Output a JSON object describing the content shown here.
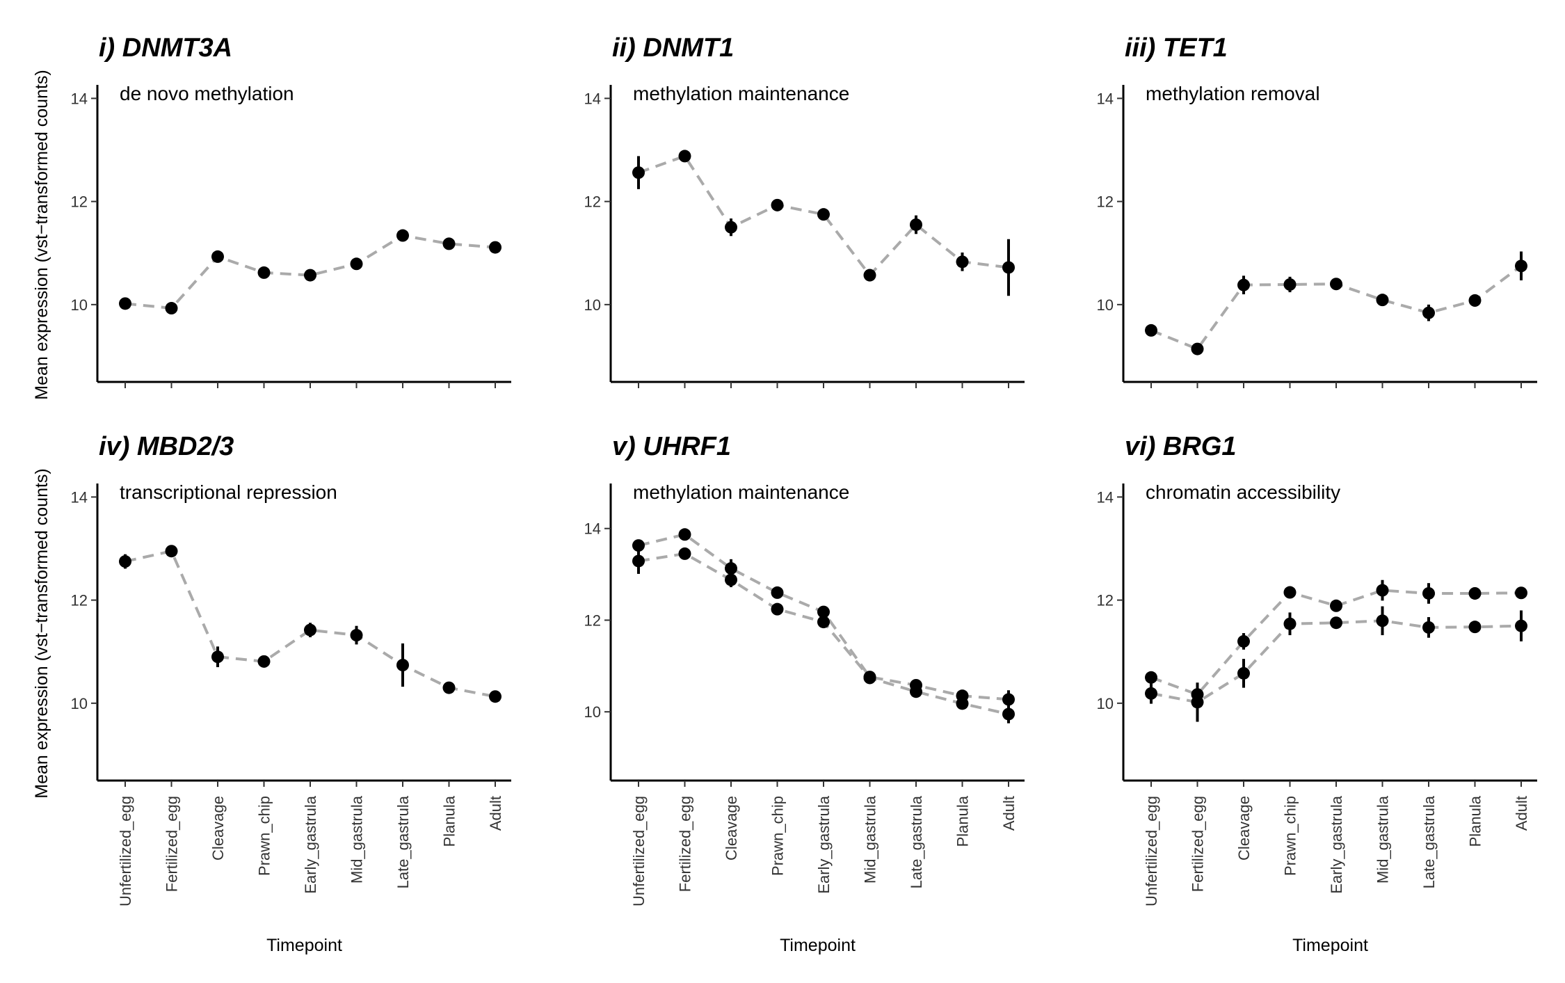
{
  "chart_data": [
    {
      "type": "scatter",
      "title": "i) DNMT3A",
      "subtitle": "de novo methylation",
      "xlabel": "",
      "ylabel": "Mean expression (vst−transformed counts)",
      "ylim": [
        8.5,
        14.1
      ],
      "yticks": [
        10,
        12,
        14
      ],
      "categories": [
        "Unfertilized_egg",
        "Fertilized_egg",
        "Cleavage",
        "Prawn_chip",
        "Early_gastrula",
        "Mid_gastrula",
        "Late_gastrula",
        "Planula",
        "Adult"
      ],
      "series": [
        {
          "values": [
            10.02,
            9.93,
            10.93,
            10.62,
            10.57,
            10.79,
            11.34,
            11.18,
            11.11
          ],
          "err": [
            0.05,
            0.05,
            0.06,
            0.05,
            0.05,
            0.06,
            0.06,
            0.06,
            0.1
          ]
        }
      ]
    },
    {
      "type": "scatter",
      "title": "ii) DNMT1",
      "subtitle": "methylation maintenance",
      "xlabel": "",
      "ylabel": "",
      "ylim": [
        8.5,
        14.1
      ],
      "yticks": [
        10,
        12,
        14
      ],
      "categories": [
        "Unfertilized_egg",
        "Fertilized_egg",
        "Cleavage",
        "Prawn_chip",
        "Early_gastrula",
        "Mid_gastrula",
        "Late_gastrula",
        "Planula",
        "Adult"
      ],
      "series": [
        {
          "values": [
            12.56,
            12.88,
            11.5,
            11.93,
            11.75,
            10.57,
            11.55,
            10.83,
            10.72
          ],
          "err": [
            0.32,
            0.06,
            0.17,
            0.06,
            0.06,
            0.12,
            0.18,
            0.18,
            0.55
          ]
        }
      ]
    },
    {
      "type": "scatter",
      "title": "iii) TET1",
      "subtitle": "methylation removal",
      "xlabel": "",
      "ylabel": "",
      "ylim": [
        8.5,
        14.1
      ],
      "yticks": [
        10,
        12,
        14
      ],
      "categories": [
        "Unfertilized_egg",
        "Fertilized_egg",
        "Cleavage",
        "Prawn_chip",
        "Early_gastrula",
        "Mid_gastrula",
        "Late_gastrula",
        "Planula",
        "Adult"
      ],
      "series": [
        {
          "values": [
            9.5,
            9.14,
            10.38,
            10.39,
            10.4,
            10.09,
            9.84,
            10.08,
            10.75
          ],
          "err": [
            0.05,
            0.0,
            0.18,
            0.15,
            0.06,
            0.06,
            0.16,
            0.12,
            0.28
          ]
        }
      ]
    },
    {
      "type": "scatter",
      "title": "iv) MBD2/3",
      "subtitle": "transcriptional repression",
      "xlabel": "Timepoint",
      "ylabel": "Mean expression (vst−transformed counts)",
      "ylim": [
        8.5,
        14.1
      ],
      "yticks": [
        10,
        12,
        14
      ],
      "categories": [
        "Unfertilized_egg",
        "Fertilized_egg",
        "Cleavage",
        "Prawn_chip",
        "Early_gastrula",
        "Mid_gastrula",
        "Late_gastrula",
        "Planula",
        "Adult"
      ],
      "series": [
        {
          "values": [
            12.75,
            12.95,
            10.9,
            10.81,
            11.42,
            11.32,
            10.74,
            10.3,
            10.13
          ],
          "err": [
            0.14,
            0.05,
            0.2,
            0.1,
            0.14,
            0.18,
            0.42,
            0.06,
            0.06
          ]
        }
      ]
    },
    {
      "type": "scatter",
      "title": "v) UHRF1",
      "subtitle": "methylation maintenance",
      "xlabel": "Timepoint",
      "ylabel": "",
      "ylim": [
        8.5,
        14.8
      ],
      "yticks": [
        10,
        12,
        14
      ],
      "categories": [
        "Unfertilized_egg",
        "Fertilized_egg",
        "Cleavage",
        "Prawn_chip",
        "Early_gastrula",
        "Mid_gastrula",
        "Late_gastrula",
        "Planula",
        "Adult"
      ],
      "series": [
        {
          "values": [
            13.63,
            13.87,
            13.13,
            12.6,
            12.18,
            10.76,
            10.58,
            10.35,
            10.27
          ],
          "err": [
            0.08,
            0.08,
            0.2,
            0.08,
            0.08,
            0.06,
            0.06,
            0.06,
            0.2
          ]
        },
        {
          "values": [
            13.29,
            13.45,
            12.88,
            12.24,
            11.96,
            10.74,
            10.44,
            10.18,
            9.95
          ],
          "err": [
            0.28,
            0.06,
            0.16,
            0.1,
            0.08,
            0.06,
            0.08,
            0.06,
            0.2
          ]
        }
      ]
    },
    {
      "type": "scatter",
      "title": "vi) BRG1",
      "subtitle": "chromatin accessibility",
      "xlabel": "Timepoint",
      "ylabel": "",
      "ylim": [
        8.5,
        14.1
      ],
      "yticks": [
        10,
        12,
        14
      ],
      "categories": [
        "Unfertilized_egg",
        "Fertilized_egg",
        "Cleavage",
        "Prawn_chip",
        "Early_gastrula",
        "Mid_gastrula",
        "Late_gastrula",
        "Planula",
        "Adult"
      ],
      "series": [
        {
          "values": [
            10.5,
            10.17,
            11.2,
            12.15,
            11.89,
            12.19,
            12.13,
            12.13,
            12.14
          ],
          "err": [
            0.06,
            0.2,
            0.16,
            0.06,
            0.06,
            0.2,
            0.2,
            0.12,
            0.06
          ]
        },
        {
          "values": [
            10.19,
            10.02,
            10.58,
            11.54,
            11.56,
            11.6,
            11.47,
            11.48,
            11.5
          ],
          "err": [
            0.2,
            0.38,
            0.28,
            0.22,
            0.06,
            0.28,
            0.2,
            0.06,
            0.3
          ]
        }
      ]
    }
  ]
}
